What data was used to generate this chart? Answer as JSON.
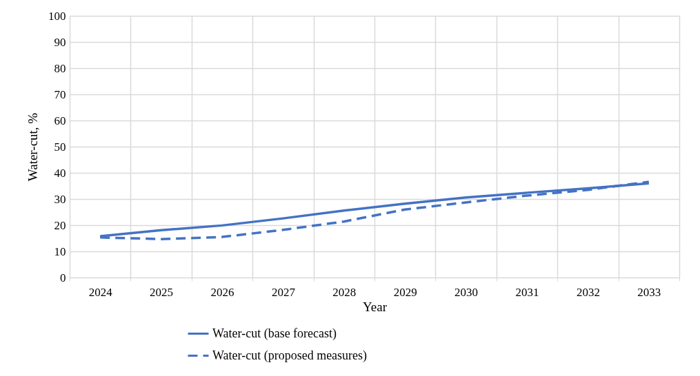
{
  "chart_data": {
    "type": "line",
    "xlabel": "Year",
    "ylabel": "Water-cut, %",
    "categories": [
      "2024",
      "2025",
      "2026",
      "2027",
      "2028",
      "2029",
      "2030",
      "2031",
      "2032",
      "2033"
    ],
    "series": [
      {
        "name": "Water-cut (base forecast)",
        "color": "#4472c4",
        "line_style": "solid",
        "values": [
          15.8,
          18.1,
          19.9,
          22.6,
          25.6,
          28.2,
          30.6,
          32.4,
          34.1,
          36
        ]
      },
      {
        "name": "Water-cut (proposed measures)",
        "color": "#4472c4",
        "line_style": "dashed",
        "values": [
          15.3,
          14.7,
          15.5,
          18.2,
          21.4,
          26,
          28.7,
          31.3,
          33.5,
          36.6
        ]
      }
    ],
    "ylim": [
      0,
      100
    ],
    "yticks": [
      0,
      10,
      20,
      30,
      40,
      50,
      60,
      70,
      80,
      90,
      100
    ],
    "grid": true,
    "legend": "bottom",
    "marker": "none"
  }
}
